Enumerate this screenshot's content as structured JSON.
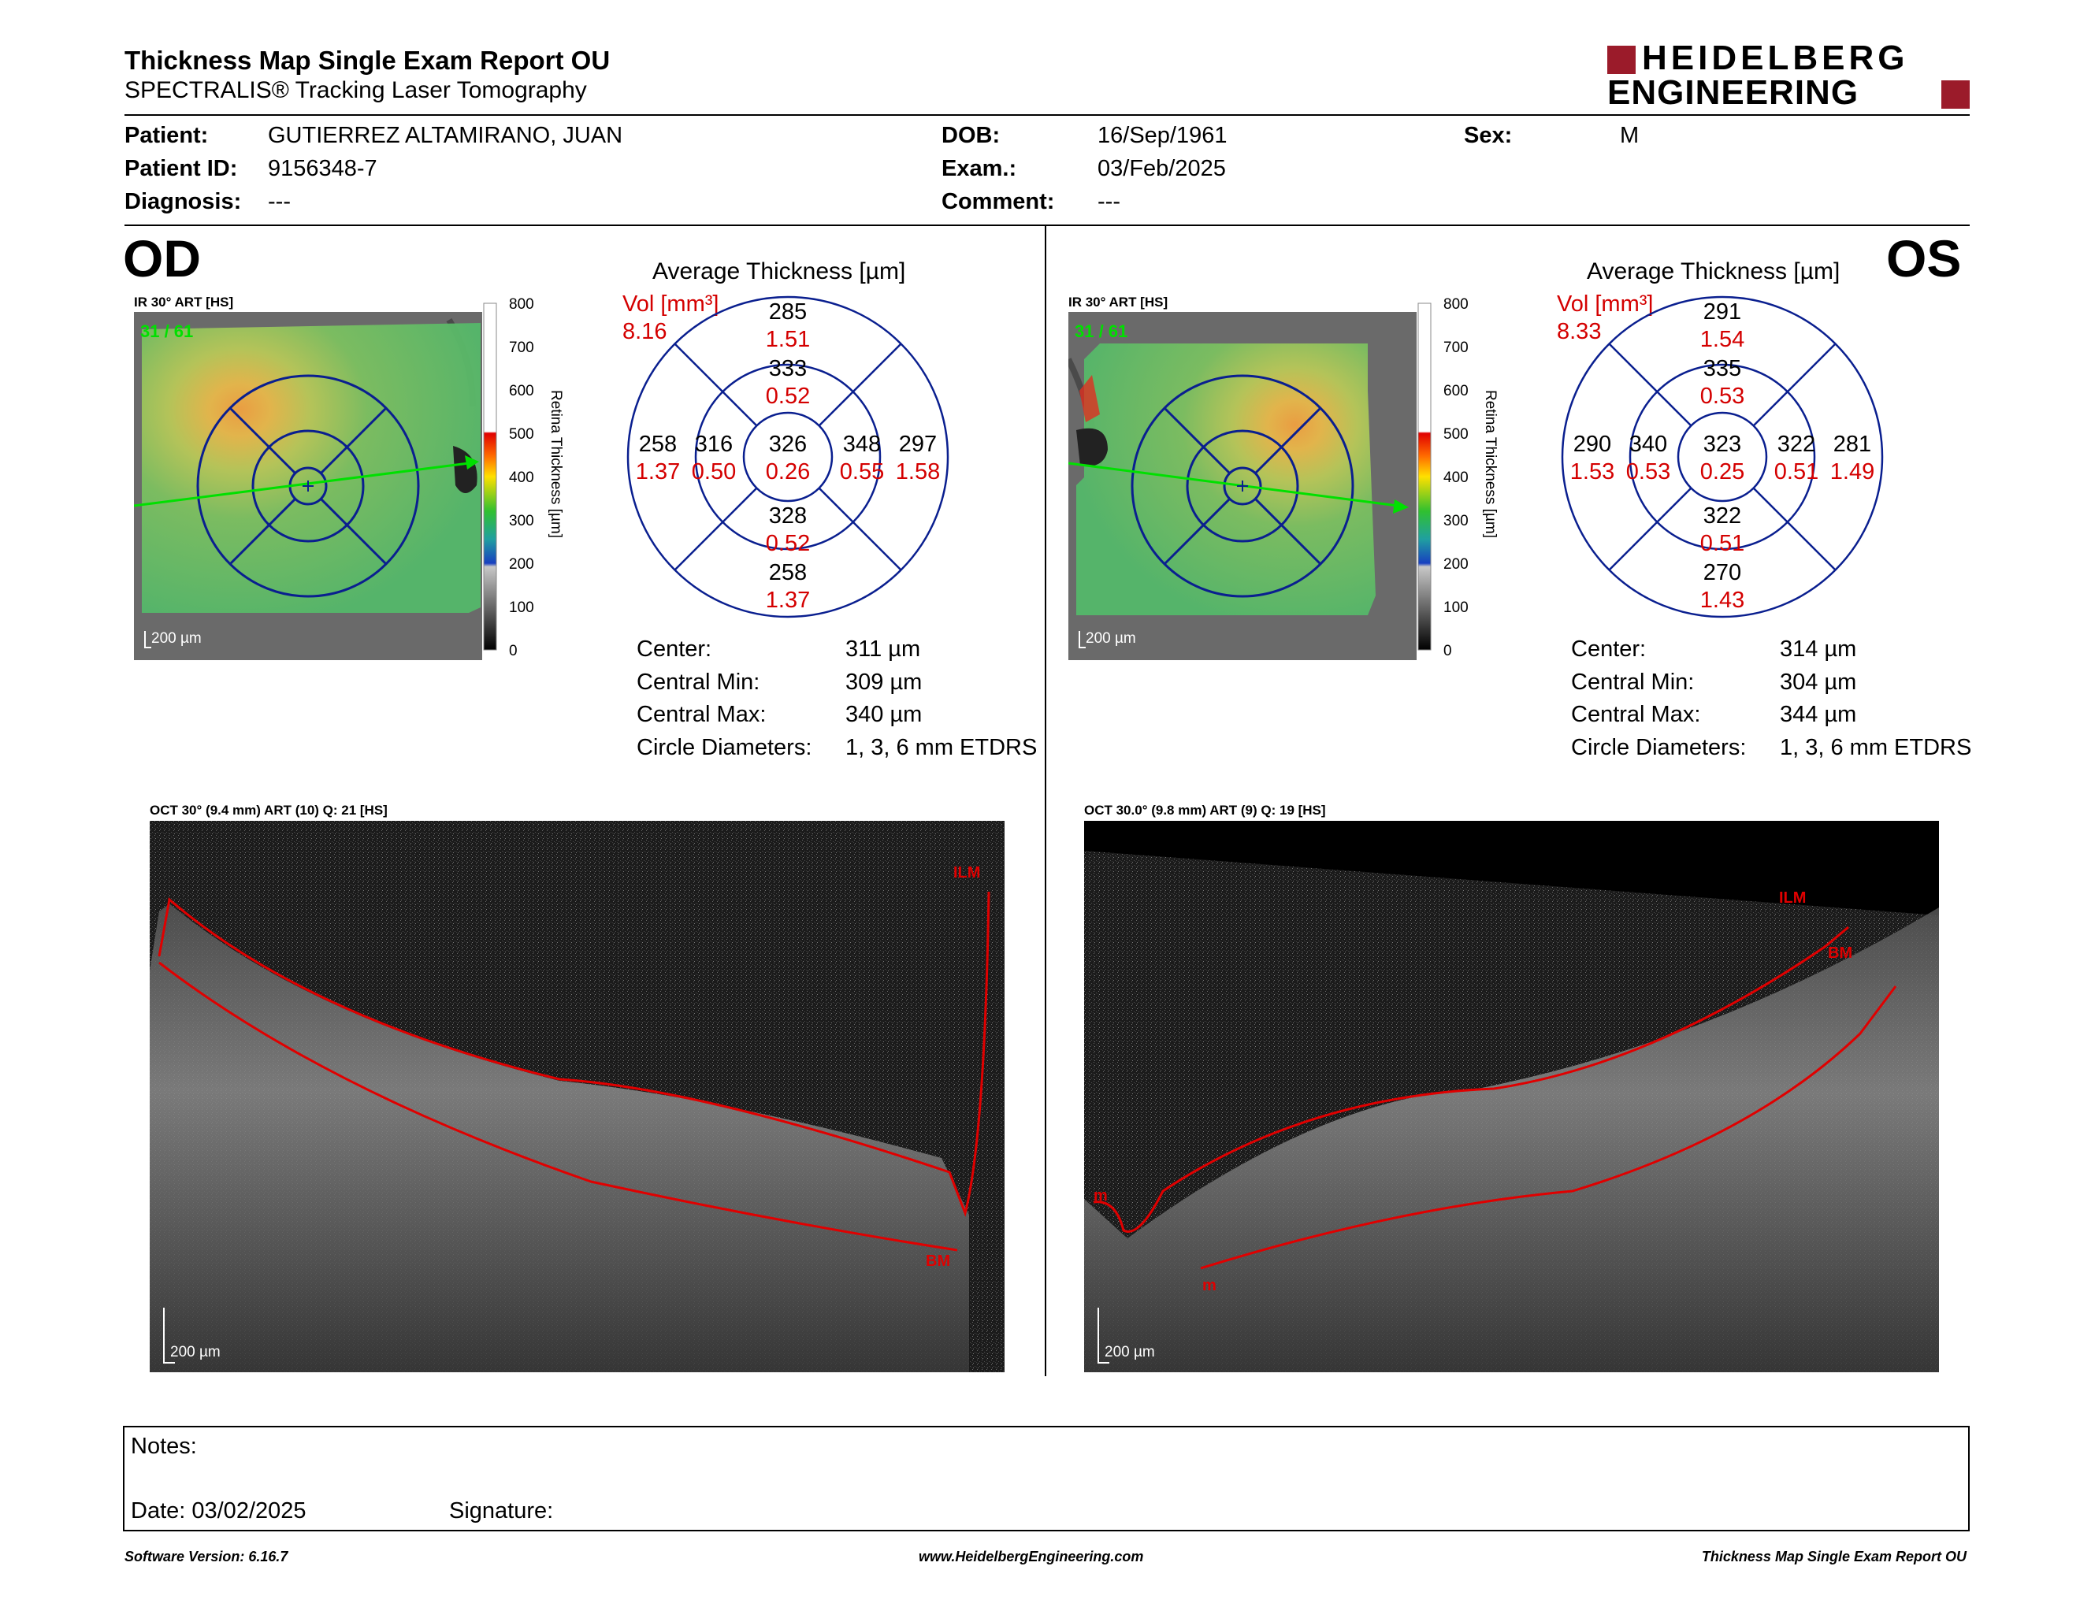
{
  "header": {
    "title": "Thickness Map Single Exam Report OU",
    "subtitle": "SPECTRALIS® Tracking Laser Tomography",
    "logo_line1": "HEIDELBERG",
    "logo_line2": "ENGINEERING"
  },
  "patient": {
    "patient_label": "Patient:",
    "patient_value": "GUTIERREZ ALTAMIRANO, JUAN",
    "id_label": "Patient ID:",
    "id_value": "9156348-7",
    "diagnosis_label": "Diagnosis:",
    "diagnosis_value": "---",
    "dob_label": "DOB:",
    "dob_value": "16/Sep/1961",
    "exam_label": "Exam.:",
    "exam_value": "03/Feb/2025",
    "comment_label": "Comment:",
    "comment_value": "---",
    "sex_label": "Sex:",
    "sex_value": "M"
  },
  "od": {
    "eye": "OD",
    "ir_label": "IR 30° ART [HS]",
    "frame": "31 / 61",
    "scale": "200 µm",
    "colorbar_title": "Retina Thickness [µm]",
    "colorbar_ticks": [
      "800",
      "700",
      "600",
      "500",
      "400",
      "300",
      "200",
      "100",
      "0"
    ],
    "avg_title": "Average Thickness [µm]",
    "vol_label": "Vol [mm³]",
    "vol_value": "8.16",
    "sectors": {
      "outer_sup": {
        "t": "285",
        "v": "1.51"
      },
      "inner_sup": {
        "t": "333",
        "v": "0.52"
      },
      "outer_temp": {
        "t": "258",
        "v": "1.37"
      },
      "inner_temp": {
        "t": "316",
        "v": "0.50"
      },
      "center": {
        "t": "326",
        "v": "0.26"
      },
      "inner_nasal": {
        "t": "348",
        "v": "0.55"
      },
      "outer_nasal": {
        "t": "297",
        "v": "1.58"
      },
      "inner_inf": {
        "t": "328",
        "v": "0.52"
      },
      "outer_inf": {
        "t": "258",
        "v": "1.37"
      }
    },
    "stats": {
      "center_label": "Center:",
      "center_value": "311 µm",
      "min_label": "Central Min:",
      "min_value": "309 µm",
      "max_label": "Central Max:",
      "max_value": "340 µm",
      "diam_label": "Circle Diameters:",
      "diam_value": "1, 3, 6 mm ETDRS"
    },
    "oct_label": "OCT 30° (9.4 mm) ART (10) Q: 21 [HS]",
    "ilm": "ILM",
    "bm": "BM",
    "oct_scale": "200 µm"
  },
  "os": {
    "eye": "OS",
    "ir_label": "IR 30° ART [HS]",
    "frame": "31 / 61",
    "scale": "200 µm",
    "colorbar_title": "Retina Thickness [µm]",
    "colorbar_ticks": [
      "800",
      "700",
      "600",
      "500",
      "400",
      "300",
      "200",
      "100",
      "0"
    ],
    "avg_title": "Average Thickness [µm]",
    "vol_label": "Vol [mm³]",
    "vol_value": "8.33",
    "sectors": {
      "outer_sup": {
        "t": "291",
        "v": "1.54"
      },
      "inner_sup": {
        "t": "335",
        "v": "0.53"
      },
      "outer_temp": {
        "t": "290",
        "v": "1.53"
      },
      "inner_temp": {
        "t": "340",
        "v": "0.53"
      },
      "center": {
        "t": "323",
        "v": "0.25"
      },
      "inner_nasal": {
        "t": "322",
        "v": "0.51"
      },
      "outer_nasal": {
        "t": "281",
        "v": "1.49"
      },
      "inner_inf": {
        "t": "322",
        "v": "0.51"
      },
      "outer_inf": {
        "t": "270",
        "v": "1.43"
      }
    },
    "stats": {
      "center_label": "Center:",
      "center_value": "314 µm",
      "min_label": "Central Min:",
      "min_value": "304 µm",
      "max_label": "Central Max:",
      "max_value": "344 µm",
      "diam_label": "Circle Diameters:",
      "diam_value": "1, 3, 6 mm ETDRS"
    },
    "oct_label": "OCT 30.0° (9.8 mm) ART (9) Q: 19 [HS]",
    "ilm": "ILM",
    "bm": "BM",
    "m1": "m",
    "m2": "m",
    "oct_scale": "200 µm"
  },
  "notes": {
    "notes_label": "Notes:",
    "date_label": "Date: 03/02/2025",
    "signature_label": "Signature:"
  },
  "footer": {
    "version": "Software Version: 6.16.7",
    "url": "www.HeidelbergEngineering.com",
    "report": "Thickness Map Single Exam Report OU"
  },
  "colors": {
    "accent_red": "#d40000",
    "logo_red": "#9b1b2a",
    "grid_blue": "#0a1f8f",
    "frame_green": "#00e000"
  }
}
